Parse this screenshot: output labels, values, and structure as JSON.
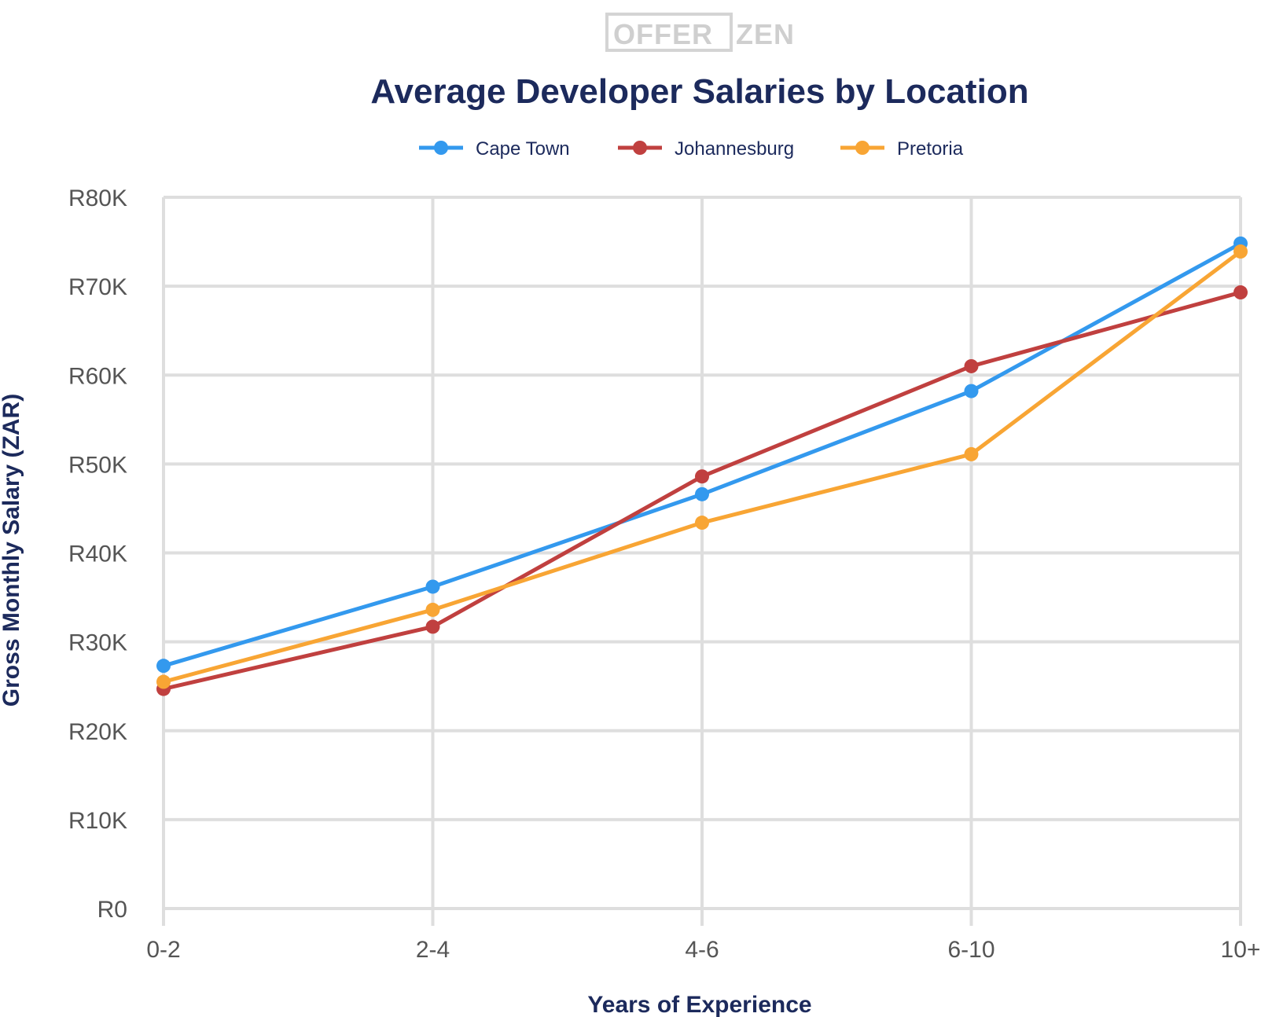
{
  "logo": {
    "left": "OFFER",
    "right": "ZEN"
  },
  "chart_data": {
    "type": "line",
    "title": "Average Developer Salaries by Location",
    "xlabel": "Years of Experience",
    "ylabel": "Gross Monthly Salary (ZAR)",
    "categories": [
      "0-2",
      "2-4",
      "4-6",
      "6-10",
      "10+"
    ],
    "ylim": [
      0,
      80000
    ],
    "yticks": [
      0,
      10000,
      20000,
      30000,
      40000,
      50000,
      60000,
      70000,
      80000
    ],
    "ytick_labels": [
      "R0",
      "R10K",
      "R20K",
      "R30K",
      "R40K",
      "R50K",
      "R60K",
      "R70K",
      "R80K"
    ],
    "grid": true,
    "legend_position": "top-center",
    "series": [
      {
        "name": "Cape Town",
        "color": "#3399ee",
        "values": [
          27300,
          36200,
          46600,
          58200,
          74800
        ]
      },
      {
        "name": "Johannesburg",
        "color": "#c0403f",
        "values": [
          24700,
          31700,
          48600,
          61000,
          69300
        ]
      },
      {
        "name": "Pretoria",
        "color": "#f8a534",
        "values": [
          25500,
          33600,
          43400,
          51100,
          73900
        ]
      }
    ]
  }
}
